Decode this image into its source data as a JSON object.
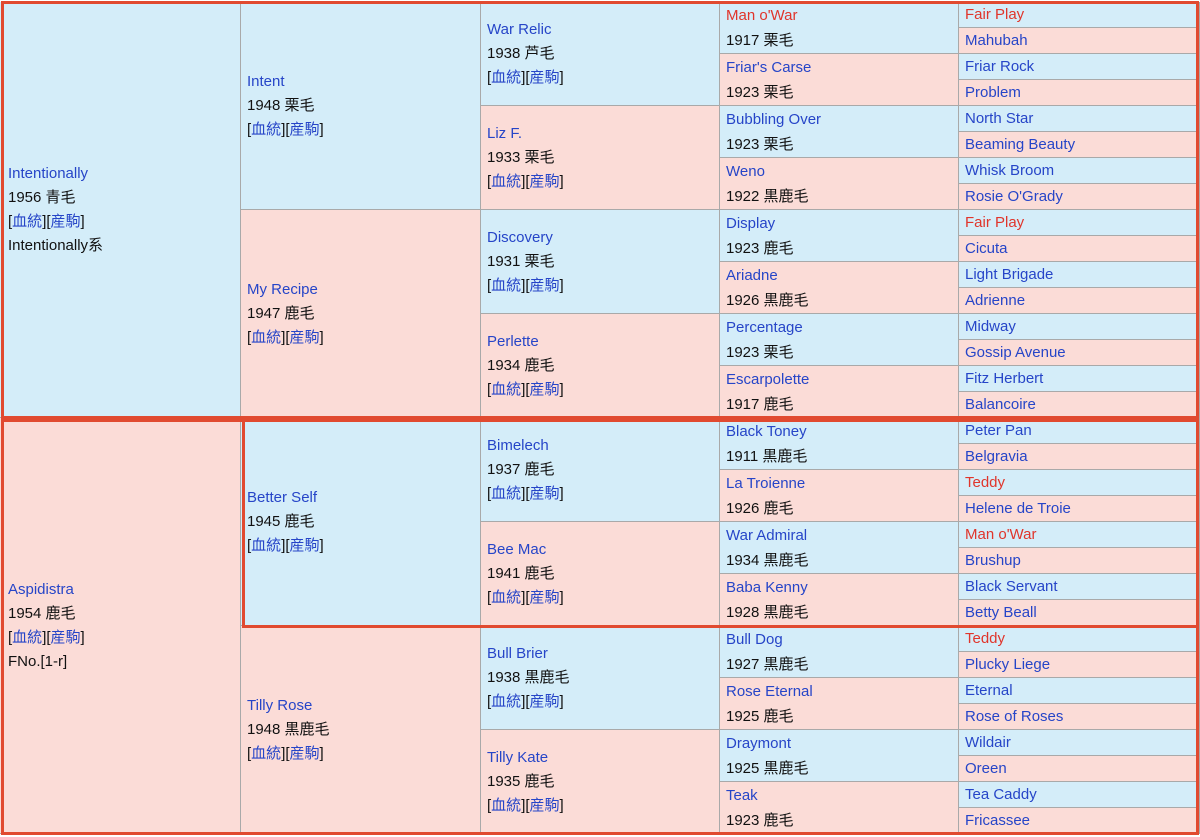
{
  "links": {
    "pedigree": "血統",
    "offspring": "産駒"
  },
  "colors": {
    "male_bg": "#d4edf9",
    "female_bg": "#fbdcd7",
    "link": "#2645c8",
    "highlight": "#e0352b",
    "outline": "#e14a30"
  },
  "gen1": [
    {
      "name": "Intentionally",
      "info": "1956 青毛",
      "extra": "Intentionally系"
    },
    {
      "name": "Aspidistra",
      "info": "1954 鹿毛",
      "extra": "FNo.[1-r]"
    }
  ],
  "gen2": [
    {
      "name": "Intent",
      "info": "1948 栗毛"
    },
    {
      "name": "My Recipe",
      "info": "1947 鹿毛"
    },
    {
      "name": "Better Self",
      "info": "1945 鹿毛"
    },
    {
      "name": "Tilly Rose",
      "info": "1948 黒鹿毛"
    }
  ],
  "gen3": [
    {
      "name": "War Relic",
      "info": "1938 芦毛"
    },
    {
      "name": "Liz F.",
      "info": "1933 栗毛"
    },
    {
      "name": "Discovery",
      "info": "1931 栗毛"
    },
    {
      "name": "Perlette",
      "info": "1934 鹿毛"
    },
    {
      "name": "Bimelech",
      "info": "1937 鹿毛"
    },
    {
      "name": "Bee Mac",
      "info": "1941 鹿毛"
    },
    {
      "name": "Bull Brier",
      "info": "1938 黒鹿毛"
    },
    {
      "name": "Tilly Kate",
      "info": "1935 鹿毛"
    }
  ],
  "gen4": [
    {
      "name": "Man o'War",
      "info": "1917 栗毛"
    },
    {
      "name": "Friar's Carse",
      "info": "1923 栗毛"
    },
    {
      "name": "Bubbling Over",
      "info": "1923 栗毛"
    },
    {
      "name": "Weno",
      "info": "1922 黒鹿毛"
    },
    {
      "name": "Display",
      "info": "1923 鹿毛"
    },
    {
      "name": "Ariadne",
      "info": "1926 黒鹿毛"
    },
    {
      "name": "Percentage",
      "info": "1923 栗毛"
    },
    {
      "name": "Escarpolette",
      "info": "1917 鹿毛"
    },
    {
      "name": "Black Toney",
      "info": "1911 黒鹿毛"
    },
    {
      "name": "La Troienne",
      "info": "1926 鹿毛"
    },
    {
      "name": "War Admiral",
      "info": "1934 黒鹿毛"
    },
    {
      "name": "Baba Kenny",
      "info": "1928 黒鹿毛"
    },
    {
      "name": "Bull Dog",
      "info": "1927 黒鹿毛"
    },
    {
      "name": "Rose Eternal",
      "info": "1925 鹿毛"
    },
    {
      "name": "Draymont",
      "info": "1925 黒鹿毛"
    },
    {
      "name": "Teak",
      "info": "1923 鹿毛"
    }
  ],
  "gen5": [
    "Fair Play",
    "Mahubah",
    "Friar Rock",
    "Problem",
    "North Star",
    "Beaming Beauty",
    "Whisk Broom",
    "Rosie O'Grady",
    "Fair Play",
    "Cicuta",
    "Light Brigade",
    "Adrienne",
    "Midway",
    "Gossip Avenue",
    "Fitz Herbert",
    "Balancoire",
    "Peter Pan",
    "Belgravia",
    "Teddy",
    "Helene de Troie",
    "Man o'War",
    "Brushup",
    "Black Servant",
    "Betty Beall",
    "Teddy",
    "Plucky Liege",
    "Eternal",
    "Rose of Roses",
    "Wildair",
    "Oreen",
    "Tea Caddy",
    "Fricassee"
  ]
}
